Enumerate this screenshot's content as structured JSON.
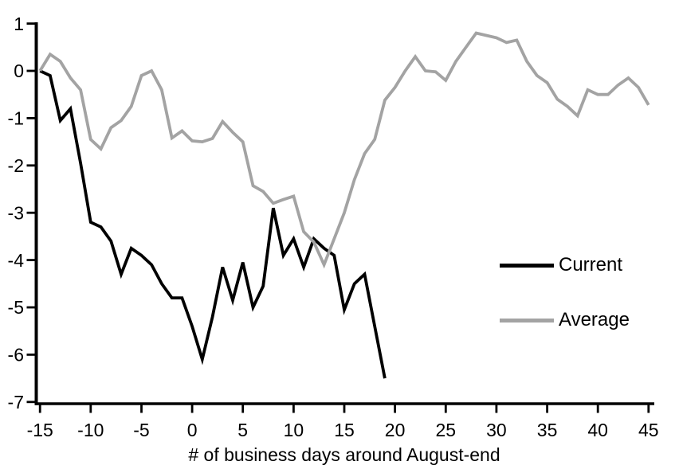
{
  "chart_data": {
    "type": "line",
    "title": "",
    "xlabel": "# of business days around August-end",
    "ylabel": "",
    "xlim": [
      -15,
      45
    ],
    "ylim": [
      -7,
      1
    ],
    "x_ticks": [
      -15,
      -10,
      -5,
      0,
      5,
      10,
      15,
      20,
      25,
      30,
      35,
      40,
      45
    ],
    "y_ticks": [
      1,
      0,
      -1,
      -2,
      -3,
      -4,
      -5,
      -6,
      -7
    ],
    "grid": false,
    "legend_position": "middle-right",
    "series": [
      {
        "name": "Current",
        "color": "#000000",
        "x_start": -15,
        "x_step": 1,
        "values": [
          0.0,
          -0.1,
          -1.05,
          -0.8,
          -1.95,
          -3.2,
          -3.3,
          -3.6,
          -4.3,
          -3.75,
          -3.9,
          -4.1,
          -4.5,
          -4.8,
          -4.8,
          -5.4,
          -6.1,
          -5.2,
          -4.15,
          -4.85,
          -4.05,
          -5.0,
          -4.55,
          -2.9,
          -3.9,
          -3.55,
          -4.15,
          -3.55,
          -3.75,
          -3.9,
          -5.05,
          -4.5,
          -4.3,
          -5.4,
          -6.5
        ]
      },
      {
        "name": "Average",
        "color": "#a3a3a3",
        "x_start": -15,
        "x_step": 1,
        "values": [
          0.0,
          0.35,
          0.2,
          -0.15,
          -0.4,
          -1.45,
          -1.65,
          -1.2,
          -1.05,
          -0.75,
          -0.1,
          0.0,
          -0.4,
          -1.42,
          -1.27,
          -1.48,
          -1.5,
          -1.43,
          -1.07,
          -1.3,
          -1.5,
          -2.43,
          -2.55,
          -2.8,
          -2.72,
          -2.65,
          -3.4,
          -3.62,
          -4.1,
          -3.55,
          -3.0,
          -2.3,
          -1.75,
          -1.45,
          -0.62,
          -0.35,
          0.0,
          0.3,
          0.0,
          -0.02,
          -0.2,
          0.2,
          0.5,
          0.8,
          0.75,
          0.7,
          0.6,
          0.65,
          0.2,
          -0.1,
          -0.25,
          -0.6,
          -0.75,
          -0.95,
          -0.4,
          -0.5,
          -0.5,
          -0.3,
          -0.15,
          -0.35,
          -0.72
        ]
      }
    ]
  },
  "colors": {
    "axis": "#000000",
    "background": "#ffffff"
  }
}
